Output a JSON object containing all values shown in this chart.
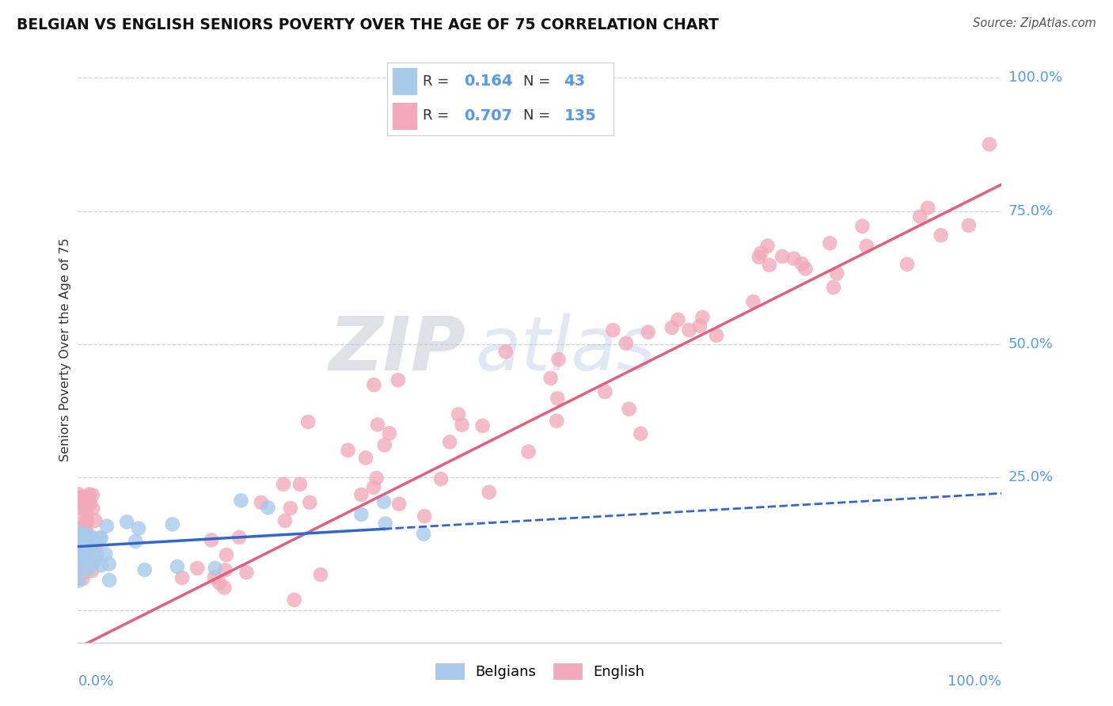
{
  "title": "BELGIAN VS ENGLISH SENIORS POVERTY OVER THE AGE OF 75 CORRELATION CHART",
  "source": "Source: ZipAtlas.com",
  "ylabel": "Seniors Poverty Over the Age of 75",
  "belgian_R": 0.164,
  "belgian_N": 43,
  "english_R": 0.707,
  "english_N": 135,
  "belgian_color": "#A8CAEA",
  "english_color": "#F2AABB",
  "belgian_line_color": "#3366CC",
  "english_line_color": "#E06080",
  "watermark_zip": "ZIP",
  "watermark_atlas": "atlas",
  "background_color": "#ffffff",
  "grid_color": "#CCCCDD",
  "ytick_color": "#5599EE",
  "xtick_color": "#5599EE",
  "title_color": "#111111",
  "ylabel_color": "#333333",
  "source_color": "#555555"
}
